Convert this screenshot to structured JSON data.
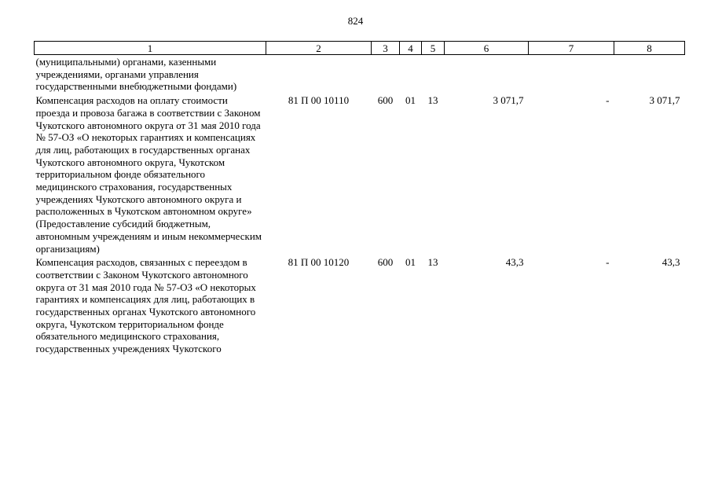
{
  "page_number": "824",
  "columns": [
    "1",
    "2",
    "3",
    "4",
    "5",
    "6",
    "7",
    "8"
  ],
  "rows": [
    {
      "description": "(муниципальными) органами, казенными учреждениями, органами управления государственными внебюджетными фондами)",
      "code": "",
      "type": "",
      "section": "",
      "subsection": "",
      "amount": "",
      "change": "",
      "total": ""
    },
    {
      "description": "Компенсация расходов на оплату стоимости проезда и провоза багажа в соответствии с Законом Чукотского автономного округа от 31 мая 2010 года № 57-ОЗ «О некоторых гарантиях и компенсациях для лиц, работающих в государственных органах Чукотского автономного округа, Чукотском территориальном фонде обязательного медицинского страхования, государственных учреждениях Чукотского автономного округа и расположенных в Чукотском автономном округе» (Предоставление субсидий бюджетным, автономным учреждениям и иным некоммерческим организациям)",
      "code": "81 П 00 10110",
      "type": "600",
      "section": "01",
      "subsection": "13",
      "amount": "3 071,7",
      "change": "-",
      "total": "3 071,7"
    },
    {
      "description": "Компенсация расходов, связанных с переездом в соответствии с Законом Чукотского автономного округа от 31 мая 2010 года № 57-ОЗ «О некоторых гарантиях и компенсациях для лиц, работающих в государственных органах Чукотского автономного округа, Чукотском территориальном фонде обязательного медицинского страхования, государственных учреждениях Чукотского",
      "code": "81 П 00 10120",
      "type": "600",
      "section": "01",
      "subsection": "13",
      "amount": "43,3",
      "change": "-",
      "total": "43,3"
    }
  ]
}
